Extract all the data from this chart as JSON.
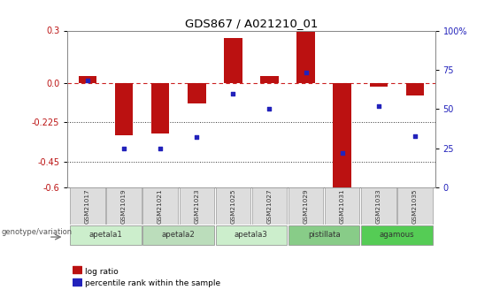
{
  "title": "GDS867 / A021210_01",
  "samples": [
    "GSM21017",
    "GSM21019",
    "GSM21021",
    "GSM21023",
    "GSM21025",
    "GSM21027",
    "GSM21029",
    "GSM21031",
    "GSM21033",
    "GSM21035"
  ],
  "log_ratio": [
    0.04,
    -0.3,
    -0.29,
    -0.12,
    0.255,
    0.04,
    0.29,
    -0.6,
    -0.02,
    -0.07
  ],
  "percentile_rank_pct": [
    68,
    25,
    25,
    32,
    60,
    50,
    73,
    22,
    52,
    33
  ],
  "ylim_left": [
    -0.6,
    0.3
  ],
  "ylim_right": [
    0,
    100
  ],
  "yticks_left": [
    -0.6,
    -0.45,
    -0.225,
    0.0,
    0.3
  ],
  "yticks_right": [
    0,
    25,
    50,
    75,
    100
  ],
  "hlines": [
    -0.45,
    -0.225
  ],
  "bar_color": "#BB1111",
  "dot_color": "#2222BB",
  "zero_line_color": "#CC2222",
  "hline_color": "#333333",
  "groups": [
    {
      "label": "apetala1",
      "color": "#CCEECC",
      "samples": [
        "GSM21017",
        "GSM21019"
      ]
    },
    {
      "label": "apetala2",
      "color": "#BBDDBB",
      "samples": [
        "GSM21021",
        "GSM21023"
      ]
    },
    {
      "label": "apetala3",
      "color": "#CCEECC",
      "samples": [
        "GSM21025",
        "GSM21027"
      ]
    },
    {
      "label": "pistillata",
      "color": "#88CC88",
      "samples": [
        "GSM21029",
        "GSM21031"
      ]
    },
    {
      "label": "agamous",
      "color": "#55CC55",
      "samples": [
        "GSM21033",
        "GSM21035"
      ]
    }
  ],
  "legend_bar_label": "log ratio",
  "legend_dot_label": "percentile rank within the sample",
  "genotype_label": "genotype/variation",
  "gsm_bg": "#DDDDDD",
  "gsm_border": "#999999",
  "plot_bg": "#FFFFFF"
}
